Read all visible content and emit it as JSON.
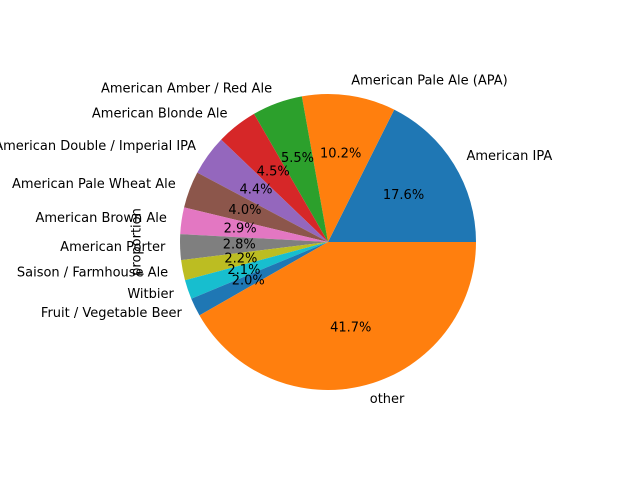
{
  "chart_data": {
    "type": "pie",
    "title": "",
    "ylabel": "proportion",
    "start_angle_deg": 0,
    "direction": "counterclockwise",
    "slices": [
      {
        "label": "American IPA",
        "value": 17.6,
        "pct_label": "17.6%",
        "color": "#1f77b4"
      },
      {
        "label": "American Pale Ale (APA)",
        "value": 10.2,
        "pct_label": "10.2%",
        "color": "#ff7f0e"
      },
      {
        "label": "American Amber / Red Ale",
        "value": 5.5,
        "pct_label": "5.5%",
        "color": "#2ca02c"
      },
      {
        "label": "American Blonde Ale",
        "value": 4.5,
        "pct_label": "4.5%",
        "color": "#d62728"
      },
      {
        "label": "American Double / Imperial IPA",
        "value": 4.4,
        "pct_label": "4.4%",
        "color": "#9467bd"
      },
      {
        "label": "American Pale Wheat Ale",
        "value": 4.0,
        "pct_label": "4.0%",
        "color": "#8c564b"
      },
      {
        "label": "American Brown Ale",
        "value": 2.9,
        "pct_label": "2.9%",
        "color": "#e377c2"
      },
      {
        "label": "American Porter",
        "value": 2.8,
        "pct_label": "2.8%",
        "color": "#7f7f7f"
      },
      {
        "label": "Saison / Farmhouse Ale",
        "value": 2.2,
        "pct_label": "2.2%",
        "color": "#bcbd22"
      },
      {
        "label": "Witbier",
        "value": 2.1,
        "pct_label": "2.1%",
        "color": "#17becf"
      },
      {
        "label": "Fruit / Vegetable Beer",
        "value": 2.0,
        "pct_label": "2.0%",
        "color": "#1f77b4"
      },
      {
        "label": "other",
        "value": 41.7,
        "pct_label": "41.7%",
        "color": "#ff7f0e"
      }
    ]
  }
}
